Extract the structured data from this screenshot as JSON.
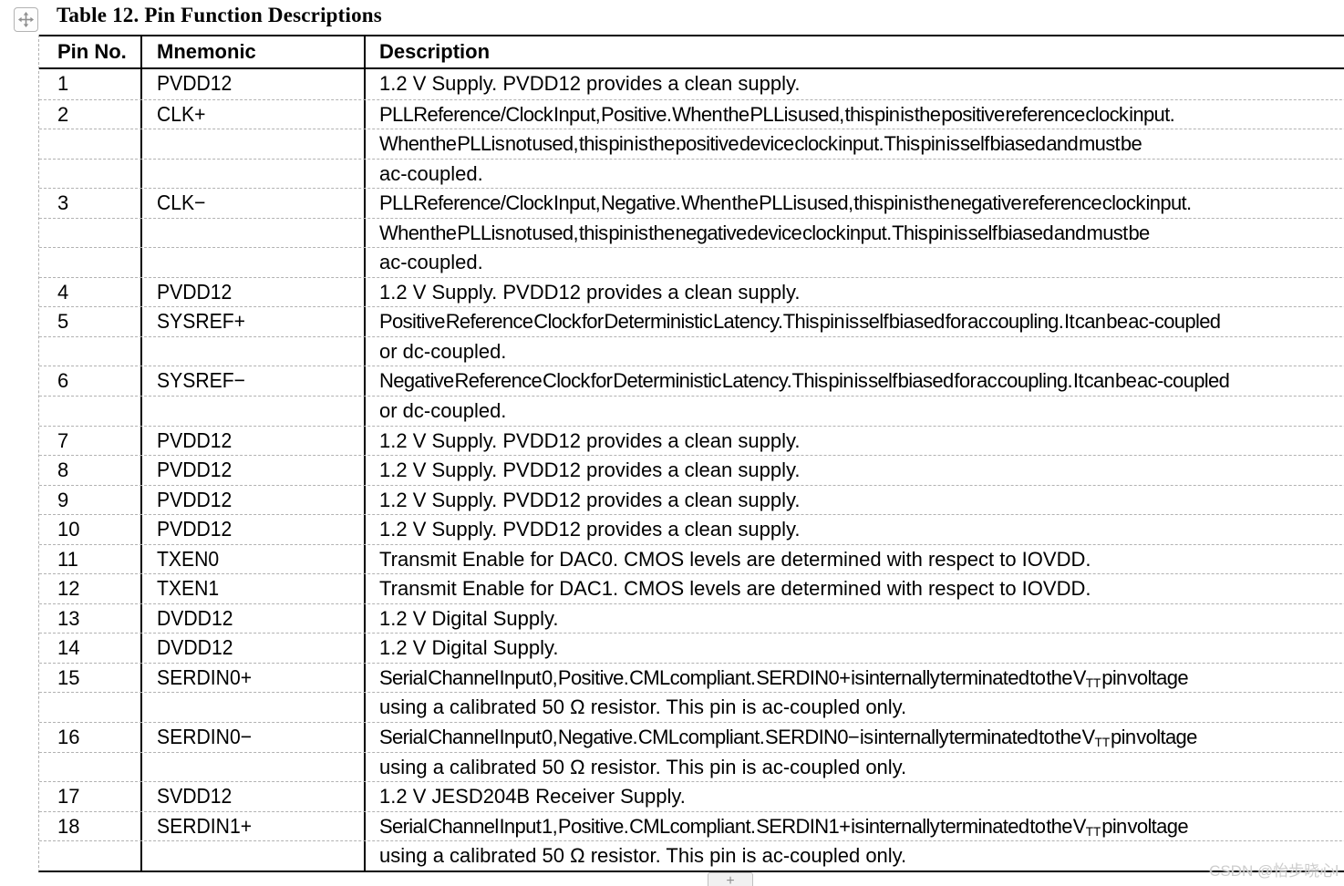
{
  "title": "Table 12. Pin Function Descriptions",
  "controls": {
    "move_handle": "table-move-handle",
    "insert_button_label": "+"
  },
  "watermark": "CSDN @怡步晓心l",
  "colors": {
    "border_solid": "#000000",
    "gridline_dashed": "#b2b2b2",
    "text": "#000000",
    "watermark": "#cdcdcd",
    "handle_icon": "#8f8f8f"
  },
  "table": {
    "columns": [
      "Pin No.",
      "Mnemonic",
      "Description"
    ],
    "rows": [
      {
        "pin": "1",
        "mnemonic": "PVDD12",
        "lines": [
          {
            "text": "1.2 V Supply. PVDD12 provides a clean supply.",
            "condensed": false
          }
        ]
      },
      {
        "pin": "2",
        "mnemonic": "CLK+",
        "lines": [
          {
            "text": "PLL Reference/Clock Input, Positive. When the PLL is used, this pin is the positive reference clock input.",
            "condensed": true
          },
          {
            "text": "When the PLL is not used, this pin is the positive device clock input. This pin is self biased and must be",
            "condensed": true
          },
          {
            "text": "ac-coupled.",
            "condensed": false
          }
        ]
      },
      {
        "pin": "3",
        "mnemonic": "CLK−",
        "lines": [
          {
            "text": "PLL Reference/Clock Input, Negative. When the PLL is used, this pin is the negative reference clock input.",
            "condensed": true
          },
          {
            "text": "When the PLL is not used, this pin is the negative device clock input. This pin is self biased and must be",
            "condensed": true
          },
          {
            "text": "ac-coupled.",
            "condensed": false
          }
        ]
      },
      {
        "pin": "4",
        "mnemonic": "PVDD12",
        "lines": [
          {
            "text": "1.2 V Supply. PVDD12 provides a clean supply.",
            "condensed": false
          }
        ]
      },
      {
        "pin": "5",
        "mnemonic": "SYSREF+",
        "lines": [
          {
            "text": "Positive Reference Clock for Deterministic Latency. This pin is self biased for ac coupling. It can be ac-coupled",
            "condensed": true
          },
          {
            "text": "or dc-coupled.",
            "condensed": false
          }
        ]
      },
      {
        "pin": "6",
        "mnemonic": "SYSREF−",
        "lines": [
          {
            "text": "Negative Reference Clock for Deterministic Latency. This pin is self biased for ac coupling. It can be ac-coupled",
            "condensed": true
          },
          {
            "text": "or dc-coupled.",
            "condensed": false
          }
        ]
      },
      {
        "pin": "7",
        "mnemonic": "PVDD12",
        "lines": [
          {
            "text": "1.2 V Supply. PVDD12 provides a clean supply.",
            "condensed": false
          }
        ]
      },
      {
        "pin": "8",
        "mnemonic": "PVDD12",
        "lines": [
          {
            "text": "1.2 V Supply. PVDD12 provides a clean supply.",
            "condensed": false
          }
        ]
      },
      {
        "pin": "9",
        "mnemonic": "PVDD12",
        "lines": [
          {
            "text": "1.2 V Supply. PVDD12 provides a clean supply.",
            "condensed": false
          }
        ]
      },
      {
        "pin": "10",
        "mnemonic": "PVDD12",
        "lines": [
          {
            "text": "1.2 V Supply. PVDD12 provides a clean supply.",
            "condensed": false
          }
        ]
      },
      {
        "pin": "11",
        "mnemonic": "TXEN0",
        "lines": [
          {
            "text": "Transmit Enable for DAC0. CMOS levels are determined with respect to IOVDD.",
            "condensed": false
          }
        ]
      },
      {
        "pin": "12",
        "mnemonic": "TXEN1",
        "lines": [
          {
            "text": "Transmit Enable for DAC1. CMOS levels are determined with respect to IOVDD.",
            "condensed": false
          }
        ]
      },
      {
        "pin": "13",
        "mnemonic": "DVDD12",
        "lines": [
          {
            "text": "1.2 V Digital Supply.",
            "condensed": false
          }
        ]
      },
      {
        "pin": "14",
        "mnemonic": "DVDD12",
        "lines": [
          {
            "text": "1.2 V Digital Supply.",
            "condensed": false
          }
        ]
      },
      {
        "pin": "15",
        "mnemonic": "SERDIN0+",
        "lines": [
          {
            "text": "Serial Channel Input 0, Positive. CML compliant. SERDIN0+ is internally terminated to the V_[TT] pin voltage",
            "condensed": true
          },
          {
            "text": "using a calibrated 50 Ω resistor. This pin is ac-coupled only.",
            "condensed": false
          }
        ]
      },
      {
        "pin": "16",
        "mnemonic": "SERDIN0−",
        "lines": [
          {
            "text": "Serial Channel Input 0, Negative. CML compliant. SERDIN0− is internally terminated to the V_[TT] pin voltage",
            "condensed": true
          },
          {
            "text": "using a calibrated 50 Ω resistor. This pin is ac-coupled only.",
            "condensed": false
          }
        ]
      },
      {
        "pin": "17",
        "mnemonic": "SVDD12",
        "lines": [
          {
            "text": "1.2 V JESD204B Receiver Supply.",
            "condensed": false
          }
        ]
      },
      {
        "pin": "18",
        "mnemonic": "SERDIN1+",
        "lines": [
          {
            "text": "Serial Channel Input 1, Positive. CML compliant. SERDIN1+ is internally terminated to the V_[TT] pin voltage",
            "condensed": true
          },
          {
            "text": "using a calibrated 50 Ω resistor. This pin is ac-coupled only.",
            "condensed": false
          }
        ]
      }
    ]
  }
}
